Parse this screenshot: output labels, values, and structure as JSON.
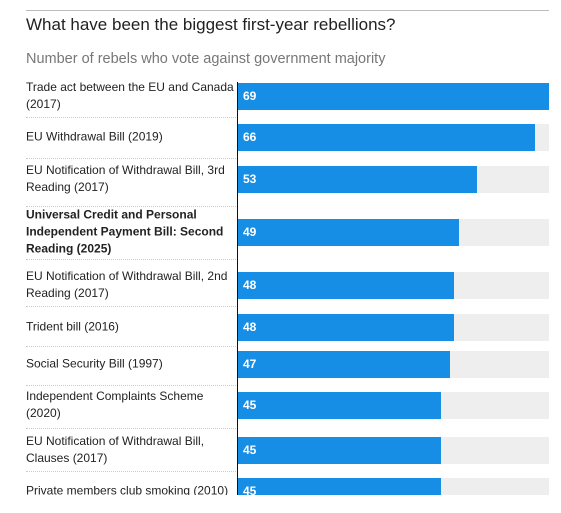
{
  "chart_data": {
    "type": "bar",
    "orientation": "horizontal",
    "title": "What have been the biggest first-year rebellions?",
    "subtitle": "Number of rebels who vote against government majority",
    "categories": [
      "Trade act between the EU and Canada (2017)",
      "EU Withdrawal Bill (2019)",
      "EU Notification of Withdrawal Bill, 3rd Reading (2017)",
      "Universal Credit and Personal Independent Payment Bill: Second Reading (2025)",
      "EU Notification of Withdrawal Bill, 2nd Reading (2017)",
      "Trident bill (2016)",
      "Social Security Bill (1997)",
      "Independent Complaints Scheme (2020)",
      "EU Notification of Withdrawal Bill, Clauses (2017)",
      "Private members club smoking (2010)"
    ],
    "values": [
      69,
      66,
      53,
      49,
      48,
      48,
      47,
      45,
      45,
      45
    ],
    "color": "#168ee5",
    "xlim": [
      0,
      69
    ]
  }
}
